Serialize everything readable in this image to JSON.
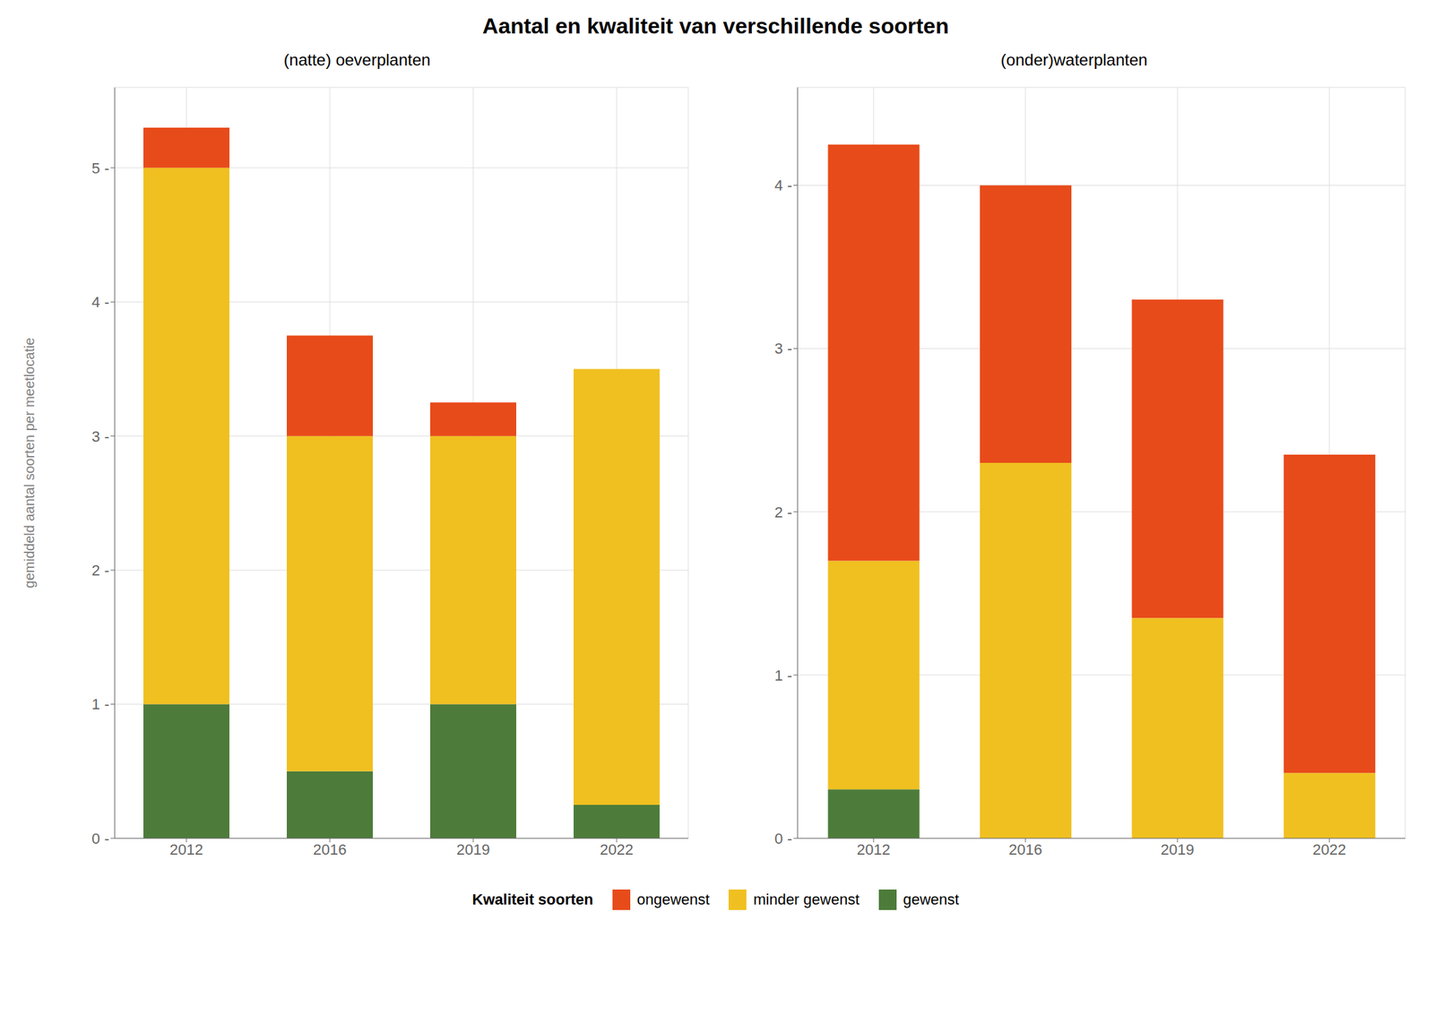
{
  "title": "Aantal en kwaliteit van verschillende soorten",
  "legend_title": "Kwaliteit soorten",
  "legend": "bottom",
  "chart_data": [
    {
      "type": "bar",
      "stacked": true,
      "title": "(natte) oeverplanten",
      "ylabel": "gemiddeld aantal soorten per meetlocatie",
      "categories": [
        "2012",
        "2016",
        "2019",
        "2022"
      ],
      "series": [
        {
          "name": "gewenst",
          "color": "#4d7c3a",
          "values": [
            1.0,
            0.5,
            1.0,
            0.25
          ]
        },
        {
          "name": "minder gewenst",
          "color": "#f0c020",
          "values": [
            4.0,
            2.5,
            2.0,
            3.25
          ]
        },
        {
          "name": "ongewenst",
          "color": "#e84b1a",
          "values": [
            0.3,
            0.75,
            0.25,
            0.0
          ]
        }
      ],
      "ylim": [
        0,
        5.6
      ],
      "yticks": [
        {
          "value": 0,
          "label": "0 -"
        },
        {
          "value": 1,
          "label": "1 -"
        },
        {
          "value": 2,
          "label": "2 -"
        },
        {
          "value": 3,
          "label": "3 -"
        },
        {
          "value": 4,
          "label": "4 -"
        },
        {
          "value": 5,
          "label": "5 -"
        }
      ],
      "grid": true
    },
    {
      "type": "bar",
      "stacked": true,
      "title": "(onder)waterplanten",
      "categories": [
        "2012",
        "2016",
        "2019",
        "2022"
      ],
      "series": [
        {
          "name": "gewenst",
          "color": "#4d7c3a",
          "values": [
            0.3,
            0.0,
            0.0,
            0.0
          ]
        },
        {
          "name": "minder gewenst",
          "color": "#f0c020",
          "values": [
            1.4,
            2.3,
            1.35,
            0.4
          ]
        },
        {
          "name": "ongewenst",
          "color": "#e84b1a",
          "values": [
            2.55,
            1.7,
            1.95,
            1.95
          ]
        }
      ],
      "ylim": [
        0,
        4.6
      ],
      "yticks": [
        {
          "value": 0,
          "label": "0 -"
        },
        {
          "value": 1,
          "label": "1 -"
        },
        {
          "value": 2,
          "label": "2 -"
        },
        {
          "value": 3,
          "label": "3 -"
        },
        {
          "value": 4,
          "label": "4 -"
        }
      ],
      "grid": true
    }
  ]
}
